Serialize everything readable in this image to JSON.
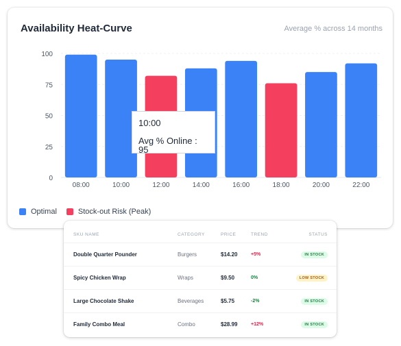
{
  "chart_card": {
    "title": "Availability Heat-Curve",
    "subtitle": "Average % across 14 months",
    "legend": [
      {
        "label": "Optimal",
        "color": "#3b82f6"
      },
      {
        "label": "Stock-out Risk (Peak)",
        "color": "#f43f5e"
      }
    ],
    "tooltip": {
      "time": "10:00",
      "text": "Avg % Online : 95"
    }
  },
  "chart_data": {
    "type": "bar",
    "categories": [
      "08:00",
      "10:00",
      "12:00",
      "14:00",
      "16:00",
      "18:00",
      "20:00",
      "22:00"
    ],
    "series": [
      {
        "values": [
          99,
          95,
          82,
          88,
          94,
          76,
          85,
          92
        ]
      }
    ],
    "bar_colors": [
      "#3b82f6",
      "#3b82f6",
      "#f43f5e",
      "#3b82f6",
      "#3b82f6",
      "#f43f5e",
      "#3b82f6",
      "#3b82f6"
    ],
    "ylim": [
      0,
      100
    ],
    "yticks": [
      0,
      25,
      50,
      75,
      100
    ],
    "grid": true,
    "legend_placement": "bottom-left"
  },
  "table": {
    "headers": {
      "sku": "SKU NAME",
      "category": "CATEGORY",
      "price": "PRICE",
      "trend": "TREND",
      "status": "STATUS"
    },
    "rows": [
      {
        "sku": "Double Quarter Pounder",
        "category": "Burgers",
        "price": "$14.20",
        "trend": "+5%",
        "status": "IN STOCK",
        "trend_color": "#e11d48",
        "status_bg": "#dcfce7",
        "status_fg": "#15803d"
      },
      {
        "sku": "Spicy Chicken Wrap",
        "category": "Wraps",
        "price": "$9.50",
        "trend": "0%",
        "status": "LOW STOCK",
        "trend_color": "#15803d",
        "status_bg": "#fef3c7",
        "status_fg": "#b45309"
      },
      {
        "sku": "Large Chocolate Shake",
        "category": "Beverages",
        "price": "$5.75",
        "trend": "-2%",
        "status": "IN STOCK",
        "trend_color": "#15803d",
        "status_bg": "#dcfce7",
        "status_fg": "#15803d"
      },
      {
        "sku": "Family Combo Meal",
        "category": "Combo",
        "price": "$28.99",
        "trend": "+12%",
        "status": "IN STOCK",
        "trend_color": "#e11d48",
        "status_bg": "#dcfce7",
        "status_fg": "#15803d"
      }
    ]
  }
}
